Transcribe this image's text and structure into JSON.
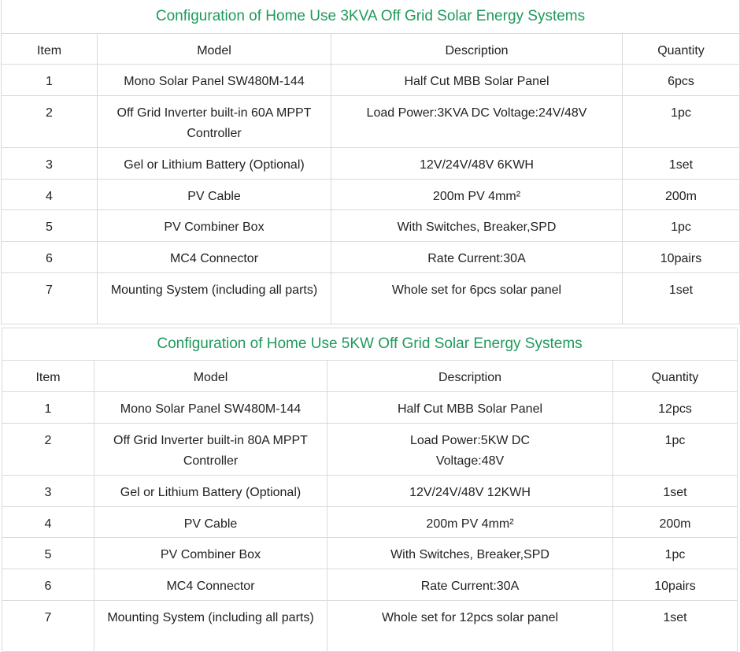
{
  "tables": [
    {
      "title": "Configuration of Home Use 3KVA Off Grid Solar Energy Systems",
      "headers": [
        "Item",
        "Model",
        "Description",
        "Quantity"
      ],
      "rows": [
        [
          "1",
          "Mono Solar Panel SW480M-144",
          "Half Cut MBB Solar Panel",
          "6pcs"
        ],
        [
          "2",
          "Off Grid Inverter built-in 60A MPPT Controller",
          "Load Power:3KVA DC Voltage:24V/48V",
          "1pc"
        ],
        [
          "3",
          "Gel or Lithium Battery (Optional)",
          "12V/24V/48V 6KWH",
          "1set"
        ],
        [
          "4",
          "PV Cable",
          "200m PV 4mm²",
          "200m"
        ],
        [
          "5",
          "PV Combiner Box",
          "With Switches, Breaker,SPD",
          "1pc"
        ],
        [
          "6",
          "MC4 Connector",
          "Rate Current:30A",
          "10pairs"
        ],
        [
          "7",
          "Mounting System (including all parts)",
          "Whole set for 6pcs solar panel",
          "1set"
        ]
      ]
    },
    {
      "title": "Configuration of Home Use 5KW Off Grid Solar Energy Systems",
      "headers": [
        "Item",
        "Model",
        "Description",
        "Quantity"
      ],
      "rows": [
        [
          "1",
          "Mono Solar Panel SW480M-144",
          "Half Cut MBB Solar Panel",
          "12pcs"
        ],
        [
          "2",
          "Off Grid Inverter built-in 80A MPPT Controller",
          "Load Power:5KW DC Voltage:48V",
          "1pc"
        ],
        [
          "3",
          "Gel or Lithium Battery (Optional)",
          "12V/24V/48V 12KWH",
          "1set"
        ],
        [
          "4",
          "PV Cable",
          "200m PV 4mm²",
          "200m"
        ],
        [
          "5",
          "PV Combiner Box",
          "With Switches, Breaker,SPD",
          "1pc"
        ],
        [
          "6",
          "MC4 Connector",
          "Rate Current:30A",
          "10pairs"
        ],
        [
          "7",
          "Mounting System (including all parts)",
          "Whole set for 12pcs solar panel",
          "1set"
        ]
      ]
    }
  ],
  "colors": {
    "title": "#1f9a5b",
    "border": "#d9d9d9",
    "text": "#222222"
  }
}
